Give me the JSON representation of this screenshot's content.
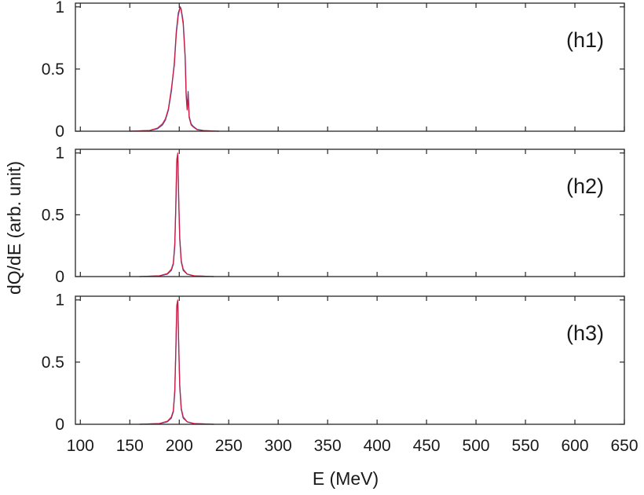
{
  "chart_data": {
    "type": "line",
    "xlabel": "E (MeV)",
    "ylabel": "dQ/dE (arb. unit)",
    "xlim": [
      95,
      650
    ],
    "ylim": [
      0,
      1.03
    ],
    "xticks": [
      "100",
      "150",
      "200",
      "250",
      "300",
      "350",
      "400",
      "450",
      "500",
      "550",
      "600",
      "650"
    ],
    "yticks": [
      "0",
      "0.5",
      "1"
    ],
    "grid": false,
    "colors": {
      "blue": "#1f3fb3",
      "red": "#e0102a"
    },
    "panels": [
      {
        "label": "(h1)",
        "series": [
          {
            "color": "#1f3fb3",
            "x": [
              150,
              170,
              178,
              183,
              186,
              189,
              192,
              195,
              197,
              199,
              201,
              202,
              204,
              206,
              207,
              208,
              209,
              210,
              212,
              214,
              218,
              225,
              240
            ],
            "y": [
              0,
              0.005,
              0.02,
              0.05,
              0.09,
              0.17,
              0.32,
              0.55,
              0.8,
              0.95,
              1.0,
              0.98,
              0.88,
              0.6,
              0.3,
              0.18,
              0.32,
              0.12,
              0.06,
              0.04,
              0.015,
              0.005,
              0
            ]
          },
          {
            "color": "#e0102a",
            "x": [
              150,
              170,
              178,
              183,
              186,
              189,
              192,
              195,
              197,
              199,
              201,
              202,
              204,
              206,
              207,
              208,
              209,
              210,
              212,
              214,
              218,
              225,
              240
            ],
            "y": [
              0,
              0.006,
              0.025,
              0.06,
              0.1,
              0.18,
              0.34,
              0.53,
              0.78,
              0.93,
              1.0,
              0.97,
              0.86,
              0.58,
              0.28,
              0.17,
              0.3,
              0.11,
              0.05,
              0.035,
              0.012,
              0.004,
              0
            ]
          }
        ]
      },
      {
        "label": "(h2)",
        "series": [
          {
            "color": "#1f3fb3",
            "x": [
              160,
              180,
              188,
              192,
              194,
              195.5,
              196.5,
              197.5,
              198.5,
              199.5,
              200.5,
              202,
              204,
              208,
              215,
              235
            ],
            "y": [
              0,
              0.005,
              0.02,
              0.05,
              0.1,
              0.25,
              0.55,
              0.92,
              0.98,
              0.6,
              0.3,
              0.12,
              0.05,
              0.02,
              0.005,
              0
            ]
          },
          {
            "color": "#e0102a",
            "x": [
              160,
              180,
              188,
              192,
              194,
              195.5,
              196.5,
              197.5,
              198.5,
              199.5,
              200.5,
              202,
              204,
              208,
              215,
              235
            ],
            "y": [
              0,
              0.006,
              0.025,
              0.06,
              0.11,
              0.27,
              0.58,
              0.95,
              1.0,
              0.62,
              0.32,
              0.13,
              0.06,
              0.02,
              0.006,
              0
            ]
          }
        ]
      },
      {
        "label": "(h3)",
        "series": [
          {
            "color": "#1f3fb3",
            "x": [
              160,
              180,
              188,
              192,
              194,
              195.5,
              196.5,
              197.5,
              198.5,
              199.5,
              200.5,
              202,
              204,
              208,
              215,
              235
            ],
            "y": [
              0,
              0.005,
              0.02,
              0.05,
              0.1,
              0.26,
              0.57,
              0.94,
              0.99,
              0.62,
              0.3,
              0.12,
              0.05,
              0.02,
              0.005,
              0
            ]
          },
          {
            "color": "#e0102a",
            "x": [
              160,
              180,
              188,
              192,
              194,
              195.5,
              196.5,
              197.5,
              198.5,
              199.5,
              200.5,
              202,
              204,
              208,
              215,
              235
            ],
            "y": [
              0,
              0.006,
              0.025,
              0.06,
              0.11,
              0.28,
              0.6,
              0.96,
              1.0,
              0.63,
              0.32,
              0.13,
              0.06,
              0.02,
              0.006,
              0
            ]
          }
        ]
      }
    ]
  }
}
